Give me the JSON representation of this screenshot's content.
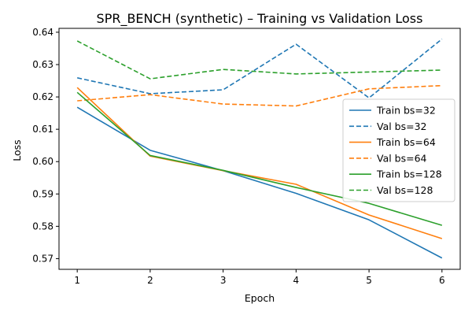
{
  "chart_data": {
    "type": "line",
    "title": "SPR_BENCH (synthetic) – Training vs Validation Loss",
    "xlabel": "Epoch",
    "ylabel": "Loss",
    "x": [
      1,
      2,
      3,
      4,
      5,
      6
    ],
    "xticks": [
      "1",
      "2",
      "3",
      "4",
      "5",
      "6"
    ],
    "yticks": [
      "0.57",
      "0.58",
      "0.59",
      "0.60",
      "0.61",
      "0.62",
      "0.63",
      "0.64"
    ],
    "xlim": [
      0.75,
      6.25
    ],
    "ylim": [
      0.5667,
      0.6412
    ],
    "grid": false,
    "legend_position": "center-right",
    "series": [
      {
        "name": "Train bs=32",
        "color": "#1f77b4",
        "style": "solid",
        "values": [
          0.6168,
          0.6035,
          0.5972,
          0.5902,
          0.582,
          0.5702
        ]
      },
      {
        "name": "Val bs=32",
        "color": "#1f77b4",
        "style": "dashed",
        "values": [
          0.6259,
          0.621,
          0.6222,
          0.6363,
          0.6197,
          0.6379
        ]
      },
      {
        "name": "Train bs=64",
        "color": "#ff7f0e",
        "style": "solid",
        "values": [
          0.6229,
          0.6017,
          0.5972,
          0.593,
          0.5835,
          0.5762
        ]
      },
      {
        "name": "Val bs=64",
        "color": "#ff7f0e",
        "style": "dashed",
        "values": [
          0.6188,
          0.6207,
          0.6178,
          0.6172,
          0.6225,
          0.6235
        ]
      },
      {
        "name": "Train bs=128",
        "color": "#2ca02c",
        "style": "solid",
        "values": [
          0.6214,
          0.6019,
          0.5973,
          0.592,
          0.5871,
          0.5803
        ]
      },
      {
        "name": "Val bs=128",
        "color": "#2ca02c",
        "style": "dashed",
        "values": [
          0.6373,
          0.6256,
          0.6285,
          0.6271,
          0.6277,
          0.6283
        ]
      }
    ]
  }
}
